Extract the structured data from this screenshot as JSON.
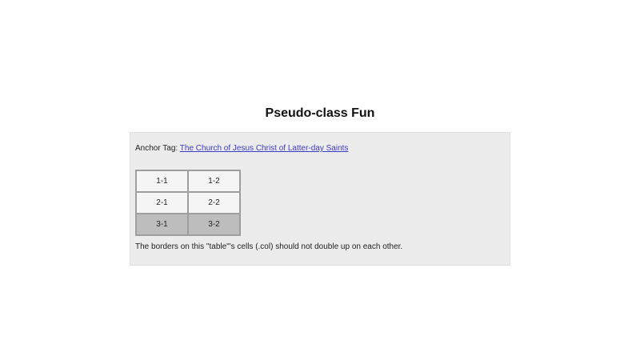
{
  "page": {
    "title": "Pseudo-class Fun"
  },
  "panel": {
    "anchor_label": "Anchor Tag: ",
    "anchor_link_text": "The Church of Jesus Christ of Latter-day Saints",
    "note": "The borders on this \"table\"'s cells (.col) should not double up on each other."
  },
  "table": {
    "rows": [
      [
        "1-1",
        "1-2"
      ],
      [
        "2-1",
        "2-2"
      ],
      [
        "3-1",
        "3-2"
      ]
    ],
    "highlighted_row_index": 2
  },
  "colors": {
    "panel_background": "#ececec",
    "panel_border": "#dedede",
    "cell_background": "#f5f5f5",
    "cell_background_highlighted": "#bdbdbd",
    "cell_border": "#9e9e9e",
    "link": "#3a3ac9"
  }
}
